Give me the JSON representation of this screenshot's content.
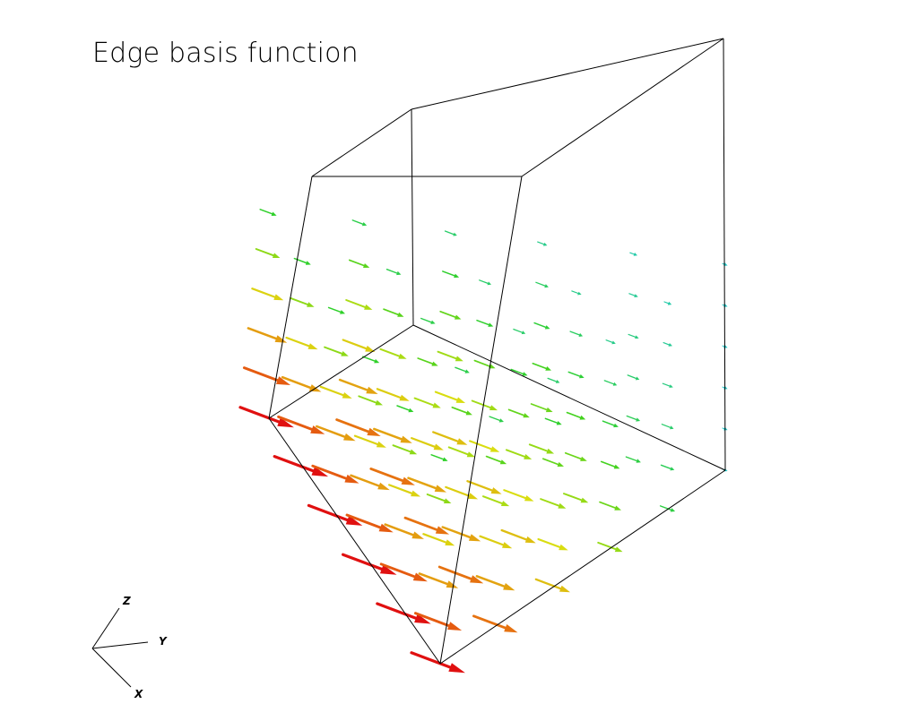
{
  "title": "Edge basis function",
  "orientation_axes": {
    "z_label": "Z",
    "y_label": "Y",
    "x_label": "X"
  },
  "colors": {
    "background": "#ffffff",
    "wireframe": "#000000",
    "high": "#e01010",
    "mid_high": "#e88a10",
    "mid": "#d8e010",
    "mid_low": "#30d020",
    "low": "#20c8c8"
  }
}
